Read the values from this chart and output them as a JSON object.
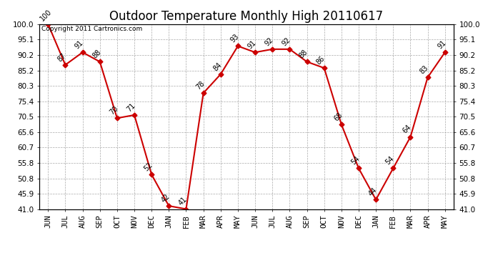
{
  "title": "Outdoor Temperature Monthly High 20110617",
  "copyright": "Copyright 2011 Cartronics.com",
  "months": [
    "JUN",
    "JUL",
    "AUG",
    "SEP",
    "OCT",
    "NOV",
    "DEC",
    "JAN",
    "FEB",
    "MAR",
    "APR",
    "MAY",
    "JUN",
    "JUL",
    "AUG",
    "SEP",
    "OCT",
    "NOV",
    "DEC",
    "JAN",
    "FEB",
    "MAR",
    "APR",
    "MAY"
  ],
  "values": [
    100,
    87,
    91,
    88,
    70,
    71,
    52,
    42,
    41,
    78,
    84,
    93,
    91,
    92,
    92,
    88,
    86,
    68,
    54,
    44,
    54,
    64,
    83,
    91
  ],
  "line_color": "#cc0000",
  "marker": "D",
  "marker_size": 3.5,
  "ylim_min": 41.0,
  "ylim_max": 100.0,
  "yticks": [
    41.0,
    45.9,
    50.8,
    55.8,
    60.7,
    65.6,
    70.5,
    75.4,
    80.3,
    85.2,
    90.2,
    95.1,
    100.0
  ],
  "grid_color": "#aaaaaa",
  "background_color": "#ffffff",
  "title_fontsize": 12,
  "label_fontsize": 7,
  "tick_fontsize": 7.5,
  "anno_fontsize": 7
}
